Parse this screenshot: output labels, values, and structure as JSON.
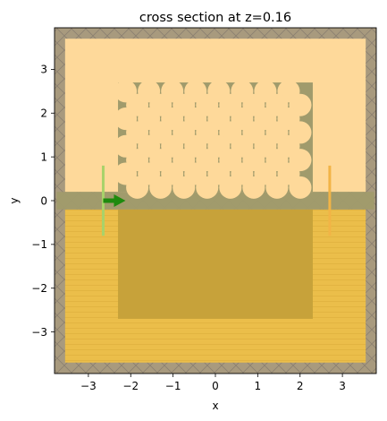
{
  "chart_data": {
    "type": "heatmap",
    "title": "cross section at z=0.16",
    "xlabel": "x",
    "ylabel": "y",
    "xlim": [
      -3.8,
      3.8
    ],
    "ylim": [
      -3.95,
      3.95
    ],
    "xticks": [
      -3,
      -2,
      -1,
      0,
      1,
      2,
      3
    ],
    "yticks": [
      -3,
      -2,
      -1,
      0,
      1,
      2,
      3
    ],
    "xtick_labels": [
      "−3",
      "−2",
      "−1",
      "0",
      "1",
      "2",
      "3"
    ],
    "ytick_labels": [
      "−3",
      "−2",
      "−1",
      "0",
      "1",
      "2",
      "3"
    ],
    "simulation_domain": {
      "x": [
        -3.55,
        3.55
      ],
      "y": [
        -3.7,
        3.7
      ]
    },
    "pml_thickness": 0.25,
    "upper_cladding": {
      "y": [
        0.2,
        3.7
      ]
    },
    "substrate": {
      "y": [
        -3.7,
        -0.2
      ]
    },
    "slab": {
      "y": [
        -0.2,
        0.2
      ]
    },
    "photonic_crystal": {
      "x": [
        -2.3,
        2.3
      ],
      "y": [
        0.2,
        2.7
      ],
      "hole_radius": 0.12,
      "hole_pitch_x": 0.55,
      "hole_pitch_y": 0.48,
      "rows": 8
    },
    "lower_box": {
      "x": [
        -2.3,
        2.3
      ],
      "y": [
        -2.7,
        -0.2
      ]
    },
    "source": {
      "x": -2.65,
      "y": [
        -0.8,
        0.8
      ],
      "direction": "+x",
      "color": "#1e8a0e"
    },
    "monitor": {
      "x": 2.7,
      "y": [
        -0.8,
        0.8
      ]
    },
    "colors": {
      "pml": "#a89a7e",
      "upper_cladding": "#fed99a",
      "substrate": "#ebbe4a",
      "slab": "#a09b6c",
      "photonic_crystal": "#a09b6c",
      "hole": "#fed99a",
      "lower_box": "#c7a23a",
      "source_line": "#a9d26a",
      "monitor_line": "#f2b446"
    }
  }
}
